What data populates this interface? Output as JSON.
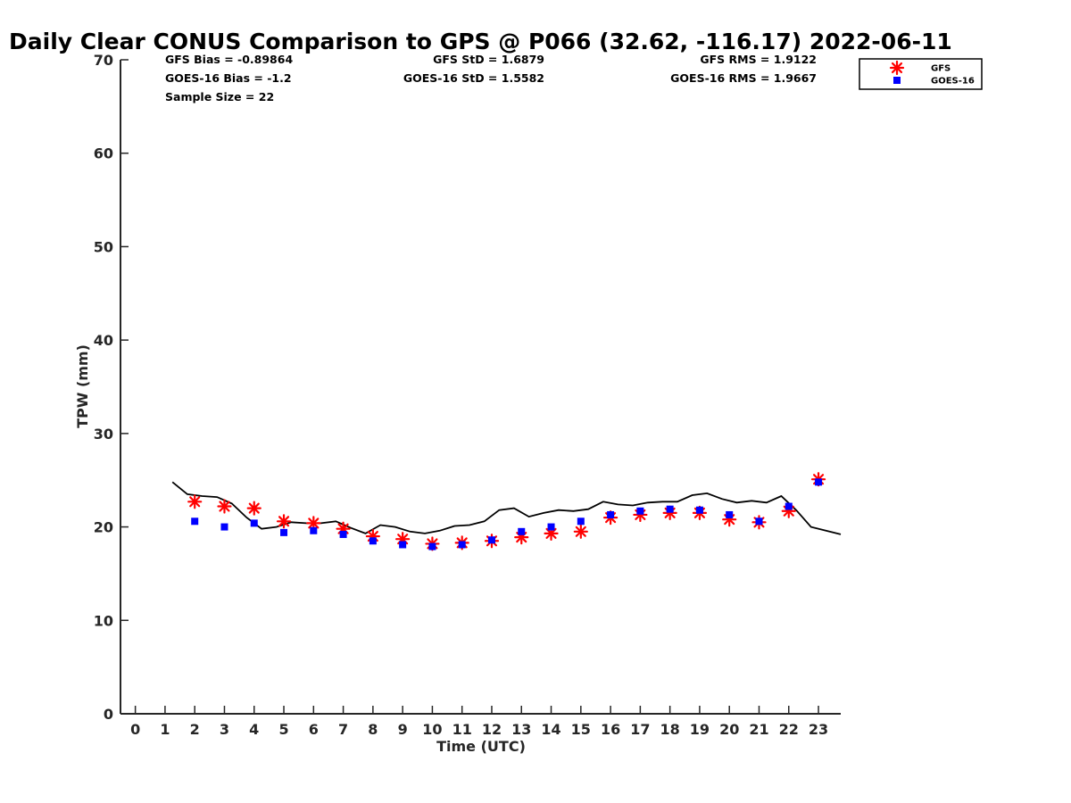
{
  "chart_data": {
    "type": "scatter",
    "title": "Daily Clear CONUS Comparison to GPS @ P066 (32.62, -116.17) 2022-06-11",
    "xlabel": "Time (UTC)",
    "ylabel": "TPW (mm)",
    "xlim": [
      -0.5,
      23.75
    ],
    "ylim": [
      0,
      70
    ],
    "x_ticks": [
      0,
      1,
      2,
      3,
      4,
      5,
      6,
      7,
      8,
      9,
      10,
      11,
      12,
      13,
      14,
      15,
      16,
      17,
      18,
      19,
      20,
      21,
      22,
      23
    ],
    "y_ticks": [
      0,
      10,
      20,
      30,
      40,
      50,
      60,
      70
    ],
    "grid": false,
    "legend_position": "top-right",
    "stats": [
      "GFS Bias = -0.89864",
      "GOES-16 Bias = -1.2",
      "Sample Size = 22",
      "GFS StD = 1.6879",
      "GOES-16 StD = 1.5582",
      "GFS RMS = 1.9122",
      "GOES-16 RMS = 1.9667"
    ],
    "series": [
      {
        "name": "GFS",
        "marker": "asterisk",
        "color": "#ff0000",
        "x": [
          2,
          3,
          4,
          5,
          6,
          7,
          8,
          9,
          10,
          11,
          12,
          13,
          14,
          15,
          16,
          17,
          18,
          19,
          20,
          21,
          22,
          23
        ],
        "y": [
          22.7,
          22.2,
          22.0,
          20.6,
          20.4,
          19.8,
          19.0,
          18.7,
          18.2,
          18.3,
          18.5,
          18.9,
          19.3,
          19.5,
          21.0,
          21.3,
          21.5,
          21.5,
          20.8,
          20.5,
          21.7,
          25.1
        ]
      },
      {
        "name": "GOES-16",
        "marker": "square",
        "color": "#0000ff",
        "x": [
          2,
          3,
          4,
          5,
          6,
          7,
          8,
          9,
          10,
          11,
          12,
          13,
          14,
          15,
          16,
          17,
          18,
          19,
          20,
          21,
          22,
          23
        ],
        "y": [
          20.6,
          20.0,
          20.4,
          19.4,
          19.6,
          19.2,
          18.5,
          18.1,
          17.9,
          18.1,
          18.6,
          19.5,
          20.0,
          20.6,
          21.3,
          21.7,
          21.9,
          21.8,
          21.3,
          20.6,
          22.2,
          24.8
        ]
      },
      {
        "name": "",
        "marker": "line",
        "color": "#000000",
        "x": [
          1.25,
          1.75,
          2.25,
          2.75,
          3.25,
          3.75,
          4.25,
          4.75,
          5.25,
          5.75,
          6.25,
          6.75,
          7.25,
          7.75,
          8.25,
          8.75,
          9.25,
          9.75,
          10.25,
          10.75,
          11.25,
          11.75,
          12.25,
          12.75,
          13.25,
          13.75,
          14.25,
          14.75,
          15.25,
          15.75,
          16.25,
          16.75,
          17.25,
          17.75,
          18.25,
          18.75,
          19.25,
          19.75,
          20.25,
          20.75,
          21.25,
          21.75,
          22.25,
          22.75,
          23.25,
          23.75
        ],
        "y": [
          24.8,
          23.5,
          23.3,
          23.2,
          22.5,
          21.0,
          19.8,
          20.0,
          20.5,
          20.4,
          20.4,
          20.6,
          19.9,
          19.3,
          20.2,
          20.0,
          19.5,
          19.3,
          19.6,
          20.1,
          20.2,
          20.6,
          21.8,
          22.0,
          21.1,
          21.5,
          21.8,
          21.7,
          21.9,
          22.7,
          22.4,
          22.3,
          22.6,
          22.7,
          22.7,
          23.4,
          23.6,
          23.0,
          22.6,
          22.8,
          22.6,
          23.3,
          21.8,
          20.0,
          19.6,
          19.2
        ]
      }
    ]
  }
}
